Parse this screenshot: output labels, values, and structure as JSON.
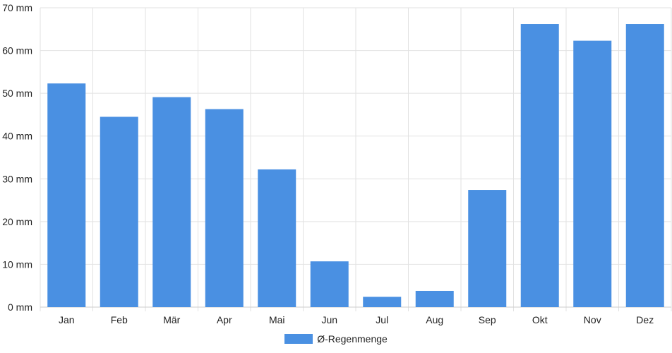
{
  "chart_data": {
    "type": "bar",
    "categories": [
      "Jan",
      "Feb",
      "Mär",
      "Apr",
      "Mai",
      "Jun",
      "Jul",
      "Aug",
      "Sep",
      "Okt",
      "Nov",
      "Dez"
    ],
    "series": [
      {
        "name": "Ø-Regenmenge",
        "values": [
          52.3,
          44.5,
          49.1,
          46.3,
          32.2,
          10.7,
          2.4,
          3.8,
          27.4,
          66.2,
          62.3,
          66.2
        ],
        "color": "#4a90e2"
      }
    ],
    "y_unit_suffix": " mm",
    "ylim": [
      0,
      70
    ],
    "ytick_step": 10,
    "yticks": [
      "0 mm",
      "10 mm",
      "20 mm",
      "30 mm",
      "40 mm",
      "50 mm",
      "60 mm",
      "70 mm"
    ],
    "grid": true,
    "legend_position": "bottom",
    "title": "",
    "xlabel": "",
    "ylabel": ""
  }
}
